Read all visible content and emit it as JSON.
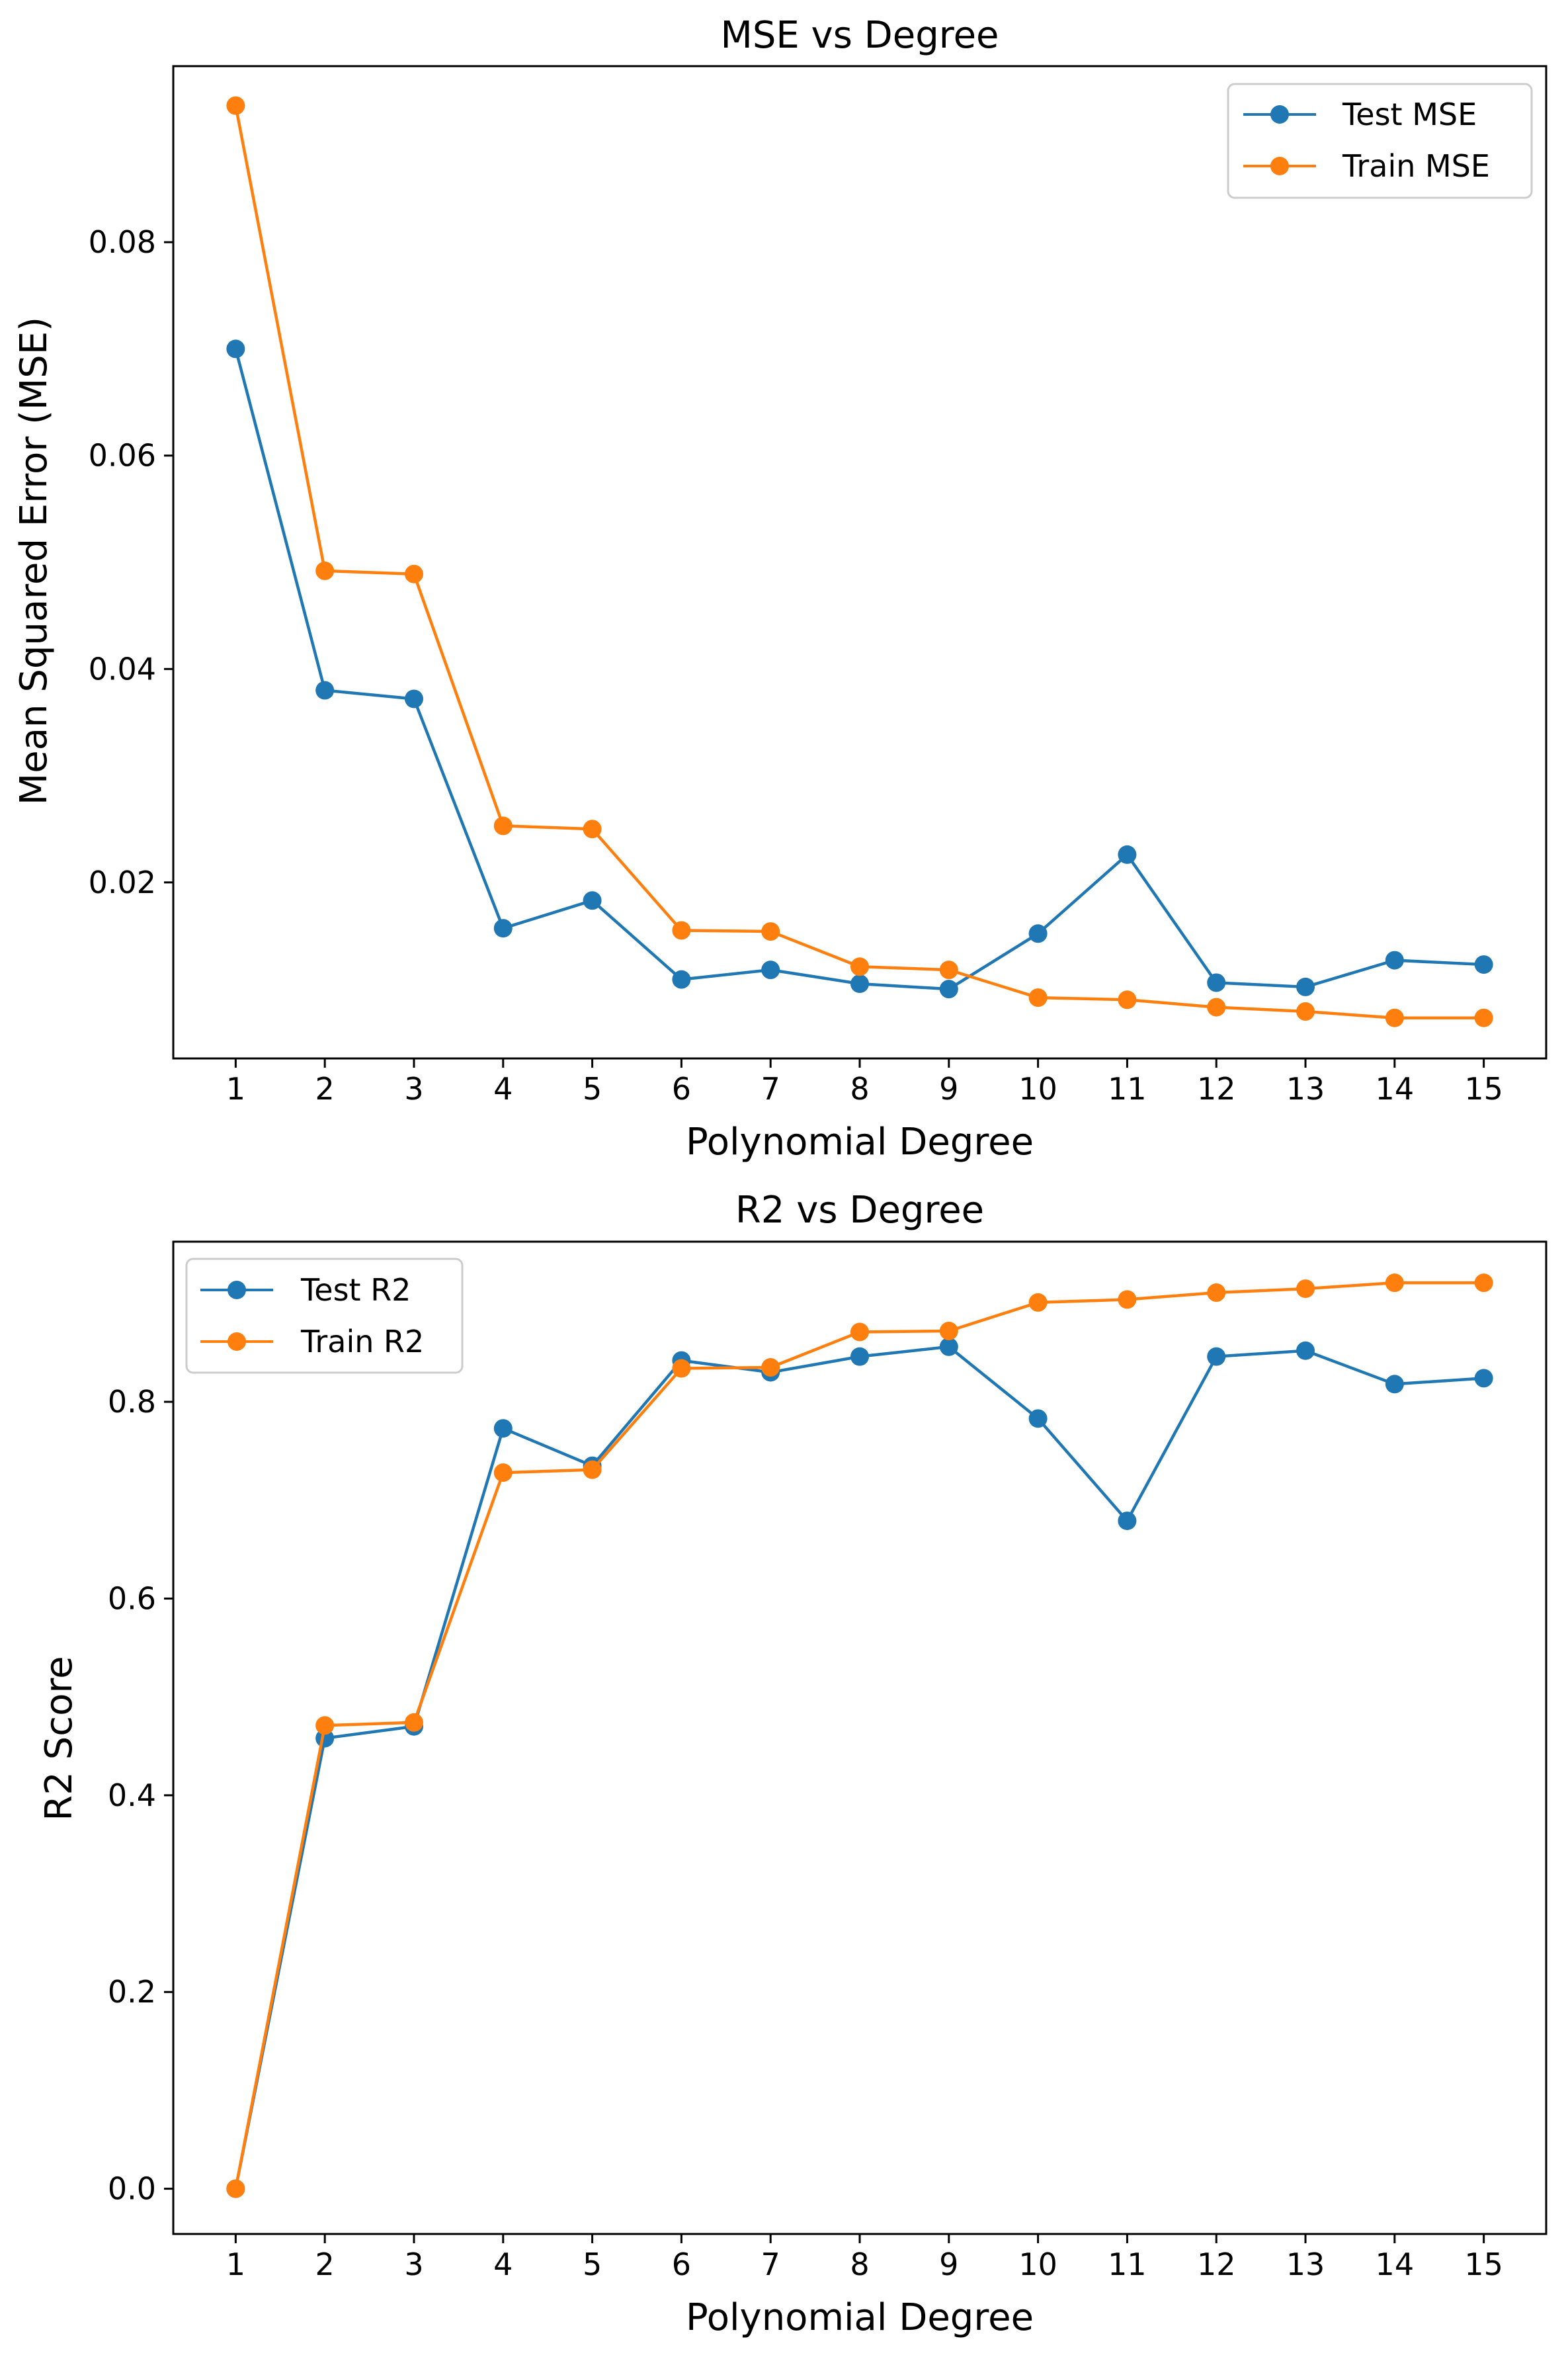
{
  "chart_data": [
    {
      "type": "line",
      "title": "MSE vs Degree",
      "xlabel": "Polynomial Degree",
      "ylabel": "Mean Squared Error (MSE)",
      "x": [
        1,
        2,
        3,
        4,
        5,
        6,
        7,
        8,
        9,
        10,
        11,
        12,
        13,
        14,
        15
      ],
      "xticks": [
        "1",
        "2",
        "3",
        "4",
        "5",
        "6",
        "7",
        "8",
        "9",
        "10",
        "11",
        "12",
        "13",
        "14",
        "15"
      ],
      "yticks": [
        "0.02",
        "0.04",
        "0.06",
        "0.08"
      ],
      "ytick_values": [
        0.02,
        0.04,
        0.06,
        0.08
      ],
      "ylim": [
        0.0035,
        0.0965
      ],
      "xlim": [
        0.3,
        15.7
      ],
      "grid": false,
      "legend_position": "top-right",
      "series": [
        {
          "name": "Test MSE",
          "color": "#1f77b4",
          "values": [
            0.07,
            0.038,
            0.0372,
            0.0157,
            0.0183,
            0.0109,
            0.0118,
            0.0105,
            0.01,
            0.0152,
            0.0226,
            0.0106,
            0.0102,
            0.0127,
            0.0123
          ]
        },
        {
          "name": "Train MSE",
          "color": "#ff7f0e",
          "values": [
            0.0928,
            0.0492,
            0.0489,
            0.0253,
            0.025,
            0.0155,
            0.0154,
            0.0121,
            0.0118,
            0.0092,
            0.009,
            0.0083,
            0.0079,
            0.0073,
            0.0073
          ]
        }
      ]
    },
    {
      "type": "line",
      "title": "R2 vs Degree",
      "xlabel": "Polynomial Degree",
      "ylabel": "R2 Score",
      "x": [
        1,
        2,
        3,
        4,
        5,
        6,
        7,
        8,
        9,
        10,
        11,
        12,
        13,
        14,
        15
      ],
      "xticks": [
        "1",
        "2",
        "3",
        "4",
        "5",
        "6",
        "7",
        "8",
        "9",
        "10",
        "11",
        "12",
        "13",
        "14",
        "15"
      ],
      "yticks": [
        "0.0",
        "0.2",
        "0.4",
        "0.6",
        "0.8"
      ],
      "ytick_values": [
        0.0,
        0.2,
        0.4,
        0.6,
        0.8
      ],
      "ylim": [
        -0.046,
        0.9628
      ],
      "xlim": [
        0.3,
        15.7
      ],
      "grid": false,
      "legend_position": "top-left",
      "series": [
        {
          "name": "Test R2",
          "color": "#1f77b4",
          "values": [
            0.0,
            0.458,
            0.47,
            0.773,
            0.735,
            0.842,
            0.83,
            0.846,
            0.856,
            0.783,
            0.679,
            0.846,
            0.852,
            0.818,
            0.824
          ]
        },
        {
          "name": "Train R2",
          "color": "#ff7f0e",
          "values": [
            0.0,
            0.471,
            0.474,
            0.728,
            0.731,
            0.834,
            0.835,
            0.871,
            0.872,
            0.901,
            0.904,
            0.911,
            0.915,
            0.921,
            0.921
          ]
        }
      ]
    }
  ]
}
